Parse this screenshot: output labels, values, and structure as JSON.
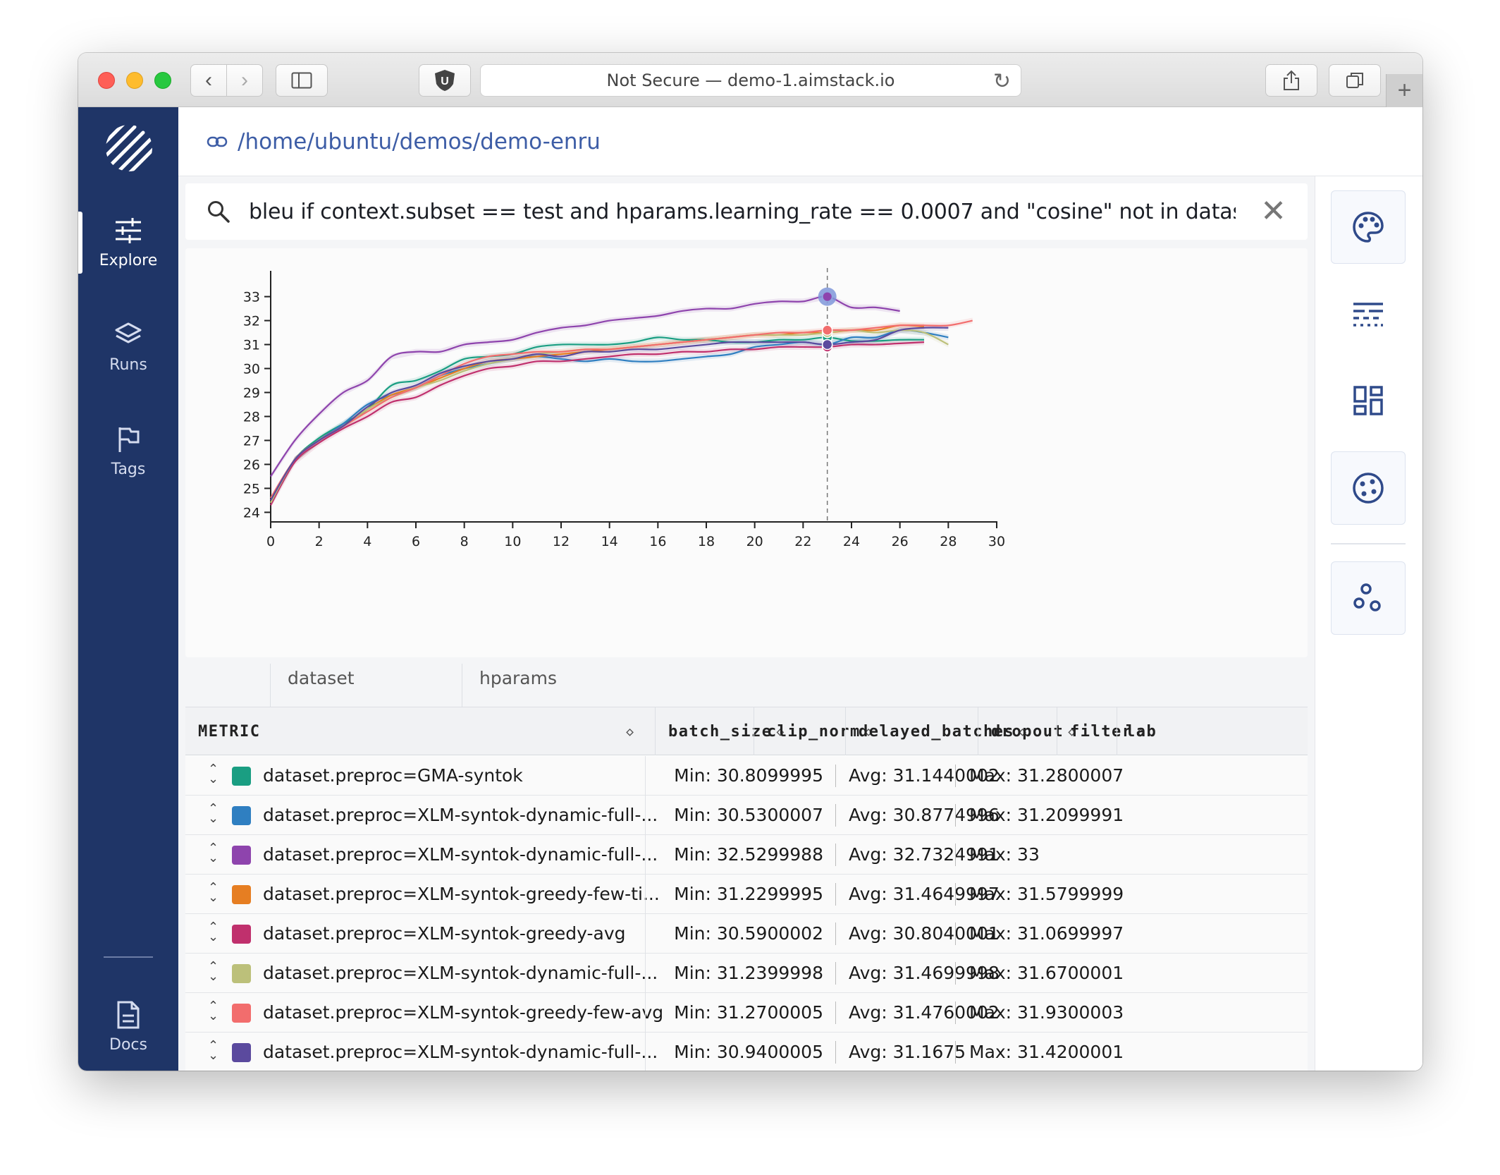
{
  "browser": {
    "url_text": "Not Secure — demo-1.aimstack.io",
    "extension_badge": "U"
  },
  "sidebar": {
    "items": [
      {
        "label": "Explore",
        "icon": "sliders-icon"
      },
      {
        "label": "Runs",
        "icon": "layers-icon"
      },
      {
        "label": "Tags",
        "icon": "flag-icon"
      }
    ],
    "bottom": {
      "label": "Docs",
      "icon": "document-icon"
    }
  },
  "header": {
    "path": "/home/ubuntu/demos/demo-enru"
  },
  "search": {
    "query": "bleu if context.subset == test and hparams.learning_rate == 0.0007 and \"cosine\" not in dataset.preproc"
  },
  "right_panel": [
    "palette-icon",
    "dashed-lines-icon",
    "dashboard-icon",
    "cookie-icon",
    "bubbles-icon"
  ],
  "chart_data": {
    "type": "line",
    "title": "",
    "xlabel": "",
    "ylabel": "",
    "xlim": [
      0,
      30
    ],
    "ylim": [
      23.6,
      33.9
    ],
    "xticks": [
      0,
      2,
      4,
      6,
      8,
      10,
      12,
      14,
      16,
      18,
      20,
      22,
      24,
      26,
      28,
      30
    ],
    "yticks": [
      24,
      25,
      26,
      27,
      28,
      29,
      30,
      31,
      32,
      33
    ],
    "grid": false,
    "cursor_x": 23,
    "series": [
      {
        "color": "#1a9e82",
        "x": [
          0,
          1,
          2,
          3,
          4,
          5,
          6,
          7,
          8,
          9,
          10,
          11,
          12,
          13,
          14,
          15,
          16,
          17,
          18,
          19,
          20,
          21,
          22,
          23,
          24,
          25,
          26,
          27
        ],
        "y": [
          24.4,
          26.2,
          27.1,
          27.7,
          28.3,
          29.3,
          29.5,
          29.9,
          30.4,
          30.5,
          30.6,
          30.9,
          31.0,
          31.0,
          31.0,
          31.1,
          31.3,
          31.2,
          31.2,
          31.1,
          31.1,
          31.2,
          31.2,
          31.3,
          31.15,
          31.15,
          31.2,
          31.2
        ]
      },
      {
        "color": "#2f7fc1",
        "x": [
          0,
          1,
          2,
          3,
          4,
          5,
          6,
          7,
          8,
          9,
          10,
          11,
          12,
          13,
          14,
          15,
          16,
          17,
          18,
          19,
          20,
          21,
          22,
          23,
          24,
          25,
          26,
          27,
          28
        ],
        "y": [
          24.5,
          26.2,
          27.0,
          27.7,
          28.5,
          28.9,
          29.2,
          29.7,
          30.0,
          30.2,
          30.4,
          30.5,
          30.4,
          30.3,
          30.4,
          30.3,
          30.3,
          30.4,
          30.5,
          30.6,
          30.9,
          31.0,
          31.1,
          31.0,
          31.3,
          31.3,
          31.6,
          31.5,
          31.3
        ]
      },
      {
        "color": "#8e44ad",
        "x": [
          0,
          1,
          2,
          3,
          4,
          5,
          6,
          7,
          8,
          9,
          10,
          11,
          12,
          13,
          14,
          15,
          16,
          17,
          18,
          19,
          20,
          21,
          22,
          23,
          24,
          25,
          26
        ],
        "y": [
          25.5,
          27.0,
          28.1,
          29.0,
          29.5,
          30.5,
          30.7,
          30.7,
          31.0,
          31.1,
          31.2,
          31.5,
          31.7,
          31.8,
          32.0,
          32.1,
          32.2,
          32.4,
          32.5,
          32.5,
          32.7,
          32.8,
          32.8,
          33.0,
          32.55,
          32.55,
          32.4
        ]
      },
      {
        "color": "#e67e22",
        "x": [
          0,
          1,
          2,
          3,
          4,
          5,
          6,
          7,
          8,
          9,
          10,
          11,
          12,
          13,
          14,
          15,
          16,
          17,
          18,
          19,
          20,
          21,
          22,
          23,
          24,
          25,
          26,
          27
        ],
        "y": [
          24.4,
          26.2,
          27.0,
          27.6,
          28.3,
          28.9,
          29.2,
          29.6,
          30.0,
          30.3,
          30.4,
          30.5,
          30.6,
          30.7,
          30.8,
          30.9,
          31.0,
          31.1,
          31.2,
          31.3,
          31.4,
          31.4,
          31.5,
          31.5,
          31.6,
          31.6,
          31.8,
          31.75
        ]
      },
      {
        "color": "#c0306d",
        "x": [
          0,
          1,
          2,
          3,
          4,
          5,
          6,
          7,
          8,
          9,
          10,
          11,
          12,
          13,
          14,
          15,
          16,
          17,
          18,
          19,
          20,
          21,
          22,
          23,
          24,
          25,
          26,
          27
        ],
        "y": [
          24.3,
          26.1,
          26.9,
          27.5,
          28.0,
          28.6,
          28.8,
          29.3,
          29.7,
          30.0,
          30.1,
          30.3,
          30.3,
          30.4,
          30.5,
          30.6,
          30.6,
          30.7,
          30.7,
          30.8,
          30.8,
          30.9,
          30.9,
          30.9,
          31.0,
          31.0,
          31.05,
          31.1
        ]
      },
      {
        "color": "#bcc07a",
        "x": [
          0,
          1,
          2,
          3,
          4,
          5,
          6,
          7,
          8,
          9,
          10,
          11,
          12,
          13,
          14,
          15,
          16,
          17,
          18,
          19,
          20,
          21,
          22,
          23,
          24,
          25,
          26,
          27,
          28
        ],
        "y": [
          24.4,
          26.2,
          27.0,
          27.6,
          28.3,
          28.8,
          29.2,
          29.5,
          29.9,
          30.2,
          30.4,
          30.6,
          30.7,
          30.8,
          30.8,
          30.9,
          31.0,
          31.1,
          31.2,
          31.3,
          31.4,
          31.4,
          31.4,
          31.5,
          31.6,
          31.5,
          31.6,
          31.5,
          31.0
        ]
      },
      {
        "color": "#f26d6d",
        "x": [
          0,
          1,
          2,
          3,
          4,
          5,
          6,
          7,
          8,
          9,
          10,
          11,
          12,
          13,
          14,
          15,
          16,
          17,
          18,
          19,
          20,
          21,
          22,
          23,
          24,
          25,
          26,
          27,
          28,
          29
        ],
        "y": [
          24.6,
          26.2,
          27.0,
          27.6,
          28.2,
          28.8,
          29.2,
          29.7,
          30.2,
          30.5,
          30.6,
          30.7,
          30.7,
          30.8,
          30.8,
          30.9,
          31.0,
          31.1,
          31.2,
          31.3,
          31.4,
          31.5,
          31.5,
          31.6,
          31.6,
          31.7,
          31.8,
          31.8,
          31.8,
          32.0
        ]
      },
      {
        "color": "#5b4a9e",
        "x": [
          0,
          1,
          2,
          3,
          4,
          5,
          6,
          7,
          8,
          9,
          10,
          11,
          12,
          13,
          14,
          15,
          16,
          17,
          18,
          19,
          20,
          21,
          22,
          23,
          24,
          25,
          26,
          27,
          28
        ],
        "y": [
          24.5,
          26.2,
          27.0,
          27.6,
          28.4,
          29.0,
          29.3,
          29.8,
          30.1,
          30.3,
          30.4,
          30.6,
          30.5,
          30.7,
          30.7,
          30.8,
          30.8,
          30.9,
          31.0,
          31.1,
          31.1,
          31.1,
          31.1,
          31.0,
          31.1,
          31.2,
          31.6,
          31.7,
          31.7
        ]
      }
    ]
  },
  "table": {
    "group_headers": [
      "dataset",
      "hparams"
    ],
    "columns": {
      "metric": "METRIC",
      "batch_size": "batch_size",
      "clip_norm": "clip_norm",
      "delayed_batches": "delayed_batches",
      "dropout": "dropout",
      "filter": "filter",
      "lab": "lab"
    },
    "rows": [
      {
        "color": "#1a9e82",
        "name": "dataset.preproc=GMA-syntok",
        "min": "Min: 30.8099995",
        "avg": "Avg: 31.1440002",
        "max": "Max: 31.2800007"
      },
      {
        "color": "#2f7fc1",
        "name": "dataset.preproc=XLM-syntok-dynamic-full-...",
        "min": "Min: 30.5300007",
        "avg": "Avg: 30.8774996",
        "max": "Max: 31.2099991"
      },
      {
        "color": "#8e44ad",
        "name": "dataset.preproc=XLM-syntok-dynamic-full-...",
        "min": "Min: 32.5299988",
        "avg": "Avg: 32.7324991",
        "max": "Max: 33"
      },
      {
        "color": "#e67e22",
        "name": "dataset.preproc=XLM-syntok-greedy-few-ti...",
        "min": "Min: 31.2299995",
        "avg": "Avg: 31.4649997",
        "max": "Max: 31.5799999"
      },
      {
        "color": "#c0306d",
        "name": "dataset.preproc=XLM-syntok-greedy-avg",
        "min": "Min: 30.5900002",
        "avg": "Avg: 30.8040001",
        "max": "Max: 31.0699997"
      },
      {
        "color": "#bcc07a",
        "name": "dataset.preproc=XLM-syntok-dynamic-full-...",
        "min": "Min: 31.2399998",
        "avg": "Avg: 31.4699998",
        "max": "Max: 31.6700001"
      },
      {
        "color": "#f26d6d",
        "name": "dataset.preproc=XLM-syntok-greedy-few-avg",
        "min": "Min: 31.2700005",
        "avg": "Avg: 31.4760002",
        "max": "Max: 31.9300003"
      },
      {
        "color": "#5b4a9e",
        "name": "dataset.preproc=XLM-syntok-dynamic-full-...",
        "min": "Min: 30.9400005",
        "avg": "Avg: 31.1675",
        "max": "Max: 31.4200001"
      }
    ]
  }
}
